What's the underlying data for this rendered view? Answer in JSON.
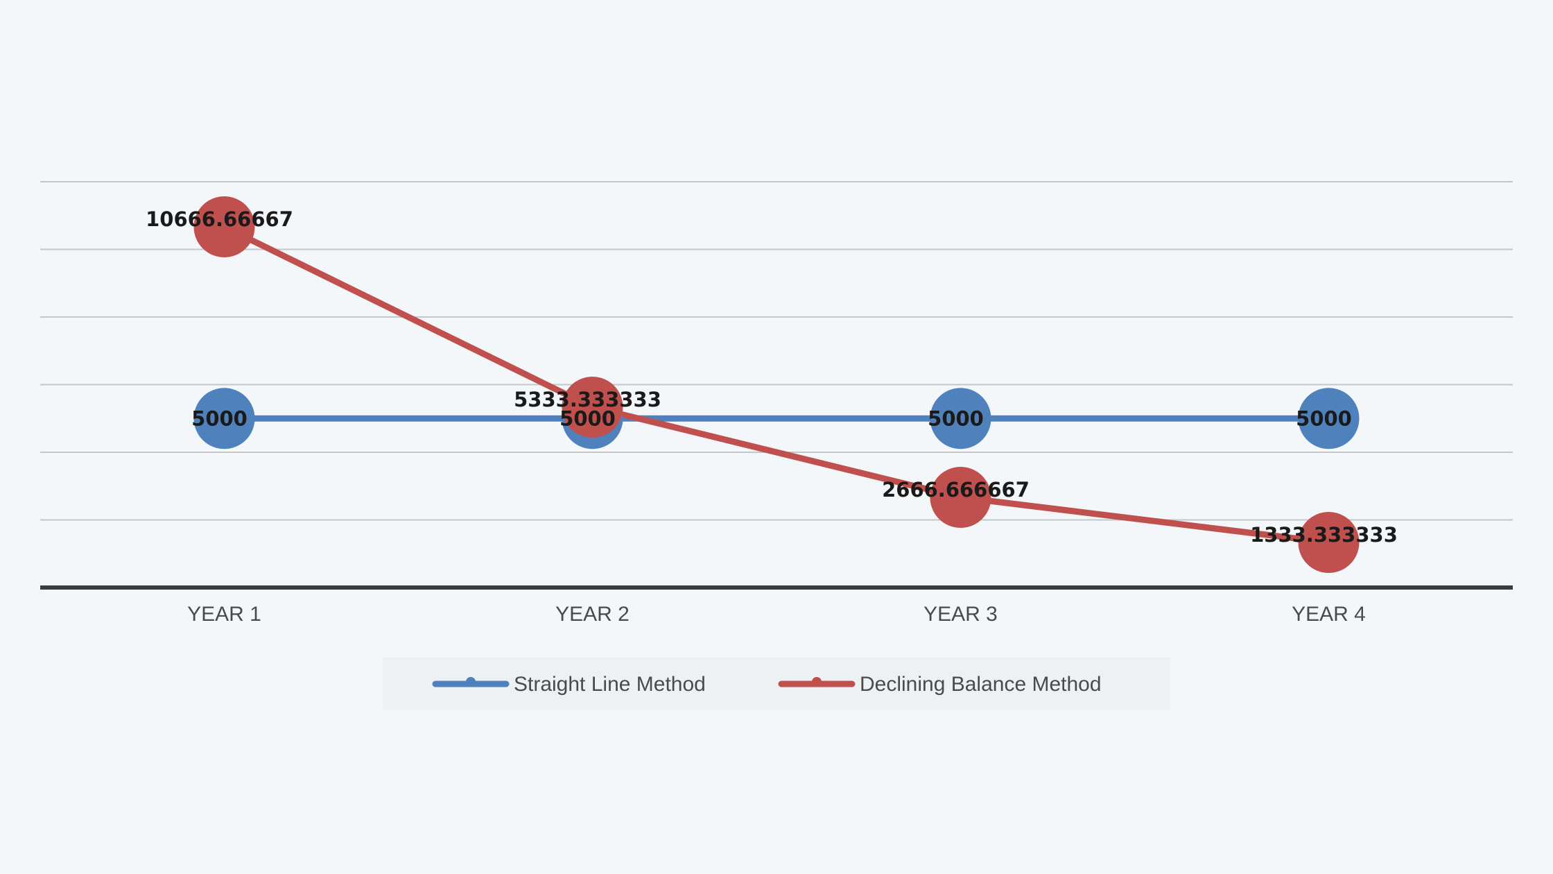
{
  "chart_data": {
    "type": "line",
    "categories": [
      "YEAR 1",
      "YEAR 2",
      "YEAR 3",
      "YEAR 4"
    ],
    "series": [
      {
        "name": "Straight Line Method",
        "values": [
          5000,
          5000,
          5000,
          5000
        ],
        "labels": [
          "5000",
          "5000",
          "5000",
          "5000"
        ],
        "color": "#4f81bd"
      },
      {
        "name": "Declining Balance Method",
        "values": [
          10666.66667,
          5333.333333,
          2666.666667,
          1333.333333
        ],
        "labels": [
          "10666.66667",
          "5333.333333",
          "2666.666667",
          "1333.333333"
        ],
        "color": "#c0504d"
      }
    ],
    "ylim": [
      0,
      12000
    ],
    "grid": true,
    "legend": "bottom",
    "title": "",
    "xlabel": "",
    "ylabel": ""
  }
}
